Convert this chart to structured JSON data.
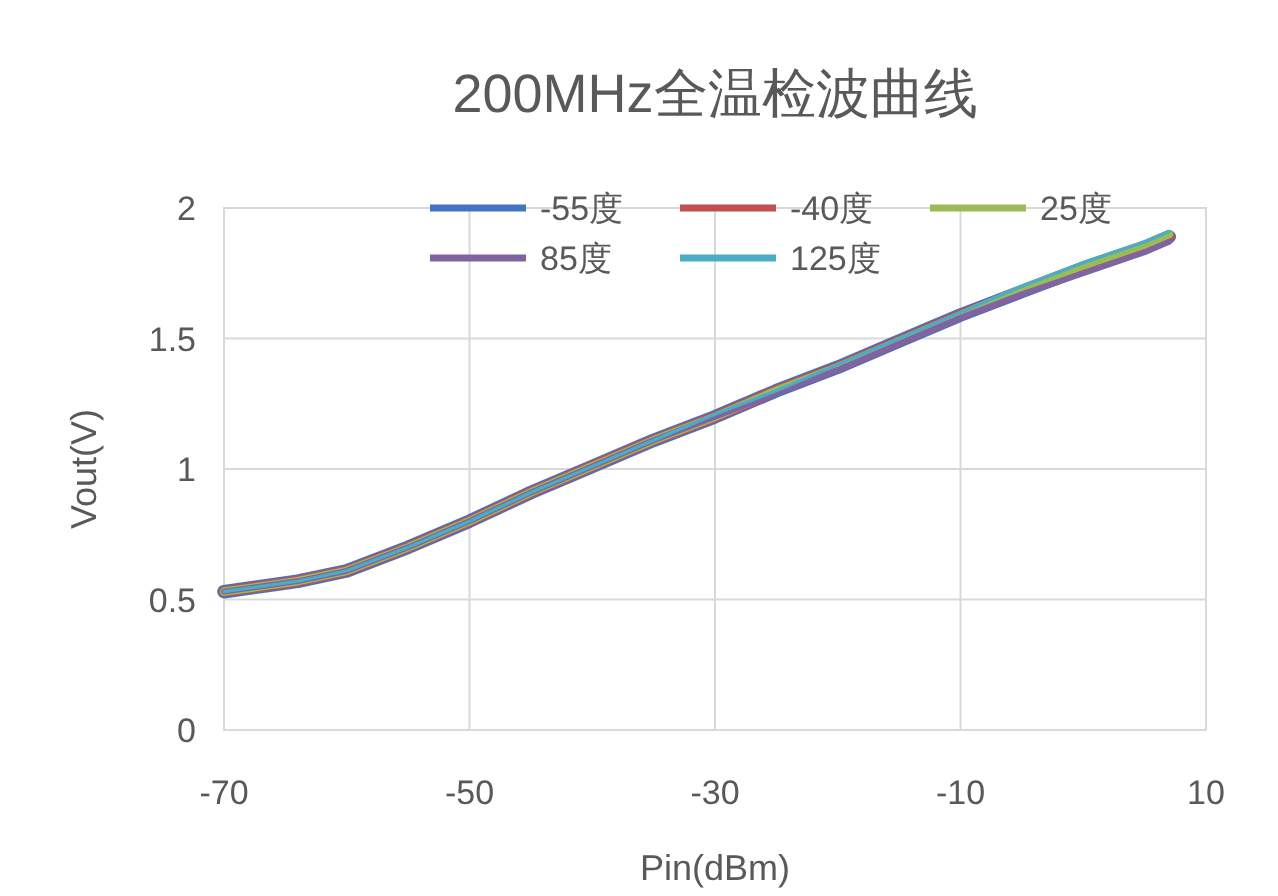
{
  "chart_data": {
    "type": "line",
    "title": "200MHz全温检波曲线",
    "xlabel": "Pin(dBm)",
    "ylabel": "Vout(V)",
    "x": [
      -70,
      -67,
      -64,
      -60,
      -55,
      -50,
      -45,
      -40,
      -35,
      -30,
      -25,
      -20,
      -15,
      -10,
      -5,
      0,
      5,
      7
    ],
    "series": [
      {
        "name": "-55度",
        "color": "#4472c4",
        "values": [
          0.53,
          0.55,
          0.57,
          0.61,
          0.7,
          0.8,
          0.91,
          1.01,
          1.11,
          1.2,
          1.3,
          1.39,
          1.49,
          1.59,
          1.68,
          1.77,
          1.85,
          1.89
        ]
      },
      {
        "name": "-40度",
        "color": "#c0504d",
        "values": [
          0.53,
          0.55,
          0.57,
          0.61,
          0.7,
          0.8,
          0.91,
          1.01,
          1.11,
          1.2,
          1.3,
          1.39,
          1.49,
          1.59,
          1.68,
          1.77,
          1.85,
          1.89
        ]
      },
      {
        "name": "25度",
        "color": "#9bbb59",
        "values": [
          0.53,
          0.55,
          0.57,
          0.61,
          0.7,
          0.8,
          0.91,
          1.01,
          1.11,
          1.2,
          1.3,
          1.39,
          1.49,
          1.59,
          1.69,
          1.78,
          1.86,
          1.9
        ]
      },
      {
        "name": "85度",
        "color": "#8064a2",
        "values": [
          0.53,
          0.55,
          0.57,
          0.61,
          0.7,
          0.8,
          0.91,
          1.01,
          1.11,
          1.2,
          1.29,
          1.38,
          1.48,
          1.58,
          1.67,
          1.75,
          1.83,
          1.87
        ]
      },
      {
        "name": "125度",
        "color": "#4bacc6",
        "values": [
          0.53,
          0.55,
          0.57,
          0.61,
          0.7,
          0.8,
          0.91,
          1.01,
          1.11,
          1.21,
          1.3,
          1.4,
          1.5,
          1.6,
          1.7,
          1.79,
          1.87,
          1.91
        ]
      }
    ],
    "xlim": [
      -70,
      10
    ],
    "xticks": [
      -70,
      -50,
      -30,
      -10,
      10
    ],
    "ylim": [
      0,
      2
    ],
    "yticks": [
      0,
      0.5,
      1,
      1.5,
      2
    ],
    "grid": true,
    "legend": "top",
    "marker": "none",
    "line_style": "solid"
  }
}
